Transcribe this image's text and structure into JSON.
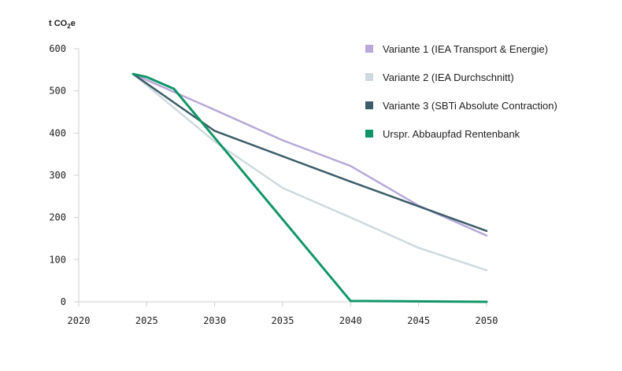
{
  "chart_data": {
    "type": "line",
    "title": "",
    "xlabel": "",
    "ylabel": "t CO2e",
    "ylabel_parts": {
      "main": "t CO",
      "sub": "2",
      "tail": "e"
    },
    "xlim": [
      2020,
      2050
    ],
    "ylim": [
      0,
      600
    ],
    "x_ticks": [
      2020,
      2025,
      2030,
      2035,
      2040,
      2045,
      2050
    ],
    "y_ticks": [
      0,
      100,
      200,
      300,
      400,
      500,
      600
    ],
    "grid": false,
    "legend_position": "top-right",
    "series": [
      {
        "name": "Variante 2 (IEA Durchschnitt)",
        "color": "#cfdadf",
        "x": [
          2024,
          2030,
          2035,
          2040,
          2045,
          2050
        ],
        "y": [
          540,
          380,
          270,
          200,
          128,
          75
        ]
      },
      {
        "name": "Variante 1 (IEA Transport & Energie)",
        "color": "#b8a9d9",
        "x": [
          2024,
          2030,
          2035,
          2040,
          2045,
          2050
        ],
        "y": [
          540,
          455,
          383,
          322,
          228,
          157
        ]
      },
      {
        "name": "Variante 3 (SBTi Absolute Contraction)",
        "color": "#3c5d69",
        "x": [
          2024,
          2030,
          2040,
          2050
        ],
        "y": [
          540,
          405,
          285,
          168
        ]
      },
      {
        "name": "Urspr. Abbaupfad Rentenbank",
        "color": "#129667",
        "x": [
          2024,
          2025,
          2027,
          2040,
          2050
        ],
        "y": [
          540,
          533,
          505,
          2,
          0
        ]
      }
    ],
    "legend_order": [
      1,
      0,
      2,
      3
    ]
  }
}
